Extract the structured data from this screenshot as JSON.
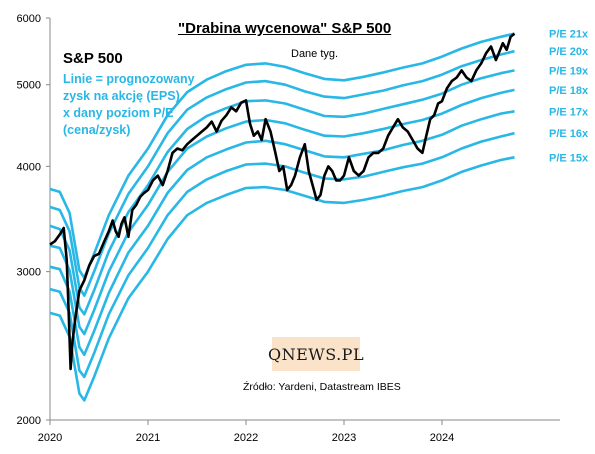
{
  "header": {
    "title": "\"Drabina  wycenowa\"  S&P 500",
    "subtitle": "Dane tyg."
  },
  "annotation": {
    "index_name": "S&P 500",
    "explanation_lines": [
      "Linie = prognozowany",
      "zysk na akcję (EPS)",
      "x dany poziom P/E",
      "(cena/zysk)"
    ]
  },
  "logo": {
    "text": "QNEWS.PL"
  },
  "source": "Źródło: Yardeni, Datastream IBES",
  "colors": {
    "sp500": "#000000",
    "pe_lines": "#29b7e6",
    "pe_labels": "#29b7e6",
    "logo_bg": "#fbe3c9"
  },
  "chart_data": {
    "type": "line",
    "title": "\"Drabina  wycenowa\"  S&P 500",
    "y_scale": "log",
    "ylim": [
      2000,
      6000
    ],
    "xlim": [
      2020.0,
      2025.0
    ],
    "y_ticks": [
      2000,
      3000,
      4000,
      5000,
      6000
    ],
    "x_ticks": [
      2020,
      2021,
      2022,
      2023,
      2024
    ],
    "grid": false,
    "series": [
      {
        "name": "S&P 500",
        "x": [
          2020.0,
          2020.05,
          2020.1,
          2020.14,
          2020.17,
          2020.19,
          2020.21,
          2020.23,
          2020.26,
          2020.3,
          2020.35,
          2020.4,
          2020.45,
          2020.5,
          2020.55,
          2020.6,
          2020.64,
          2020.67,
          2020.7,
          2020.73,
          2020.76,
          2020.8,
          2020.84,
          2020.88,
          2020.92,
          2020.96,
          2021.0,
          2021.05,
          2021.1,
          2021.15,
          2021.2,
          2021.25,
          2021.3,
          2021.35,
          2021.4,
          2021.45,
          2021.5,
          2021.55,
          2021.6,
          2021.65,
          2021.7,
          2021.75,
          2021.8,
          2021.85,
          2021.9,
          2021.95,
          2022.0,
          2022.04,
          2022.08,
          2022.12,
          2022.16,
          2022.2,
          2022.25,
          2022.3,
          2022.34,
          2022.38,
          2022.42,
          2022.46,
          2022.5,
          2022.55,
          2022.6,
          2022.64,
          2022.68,
          2022.72,
          2022.76,
          2022.8,
          2022.84,
          2022.88,
          2022.92,
          2022.96,
          2023.0,
          2023.05,
          2023.1,
          2023.15,
          2023.2,
          2023.25,
          2023.3,
          2023.35,
          2023.4,
          2023.45,
          2023.5,
          2023.55,
          2023.6,
          2023.65,
          2023.7,
          2023.75,
          2023.8,
          2023.84,
          2023.88,
          2023.92,
          2023.96,
          2024.0,
          2024.05,
          2024.1,
          2024.15,
          2024.2,
          2024.25,
          2024.3,
          2024.35,
          2024.4,
          2024.45,
          2024.5,
          2024.55,
          2024.58,
          2024.62,
          2024.66,
          2024.7,
          2024.74
        ],
        "values": [
          3230,
          3260,
          3320,
          3380,
          3100,
          2700,
          2300,
          2480,
          2650,
          2850,
          2930,
          3050,
          3130,
          3150,
          3250,
          3350,
          3450,
          3350,
          3300,
          3420,
          3480,
          3300,
          3550,
          3600,
          3680,
          3720,
          3750,
          3850,
          3900,
          3800,
          3950,
          4150,
          4200,
          4180,
          4250,
          4300,
          4350,
          4400,
          4450,
          4520,
          4400,
          4530,
          4600,
          4700,
          4650,
          4760,
          4790,
          4500,
          4350,
          4400,
          4300,
          4550,
          4400,
          4150,
          3950,
          4000,
          3750,
          3800,
          3900,
          4100,
          4250,
          3950,
          3800,
          3650,
          3700,
          3900,
          4000,
          3950,
          3850,
          3850,
          3900,
          4100,
          3950,
          3900,
          3950,
          4100,
          4150,
          4150,
          4200,
          4350,
          4450,
          4550,
          4450,
          4400,
          4300,
          4200,
          4150,
          4350,
          4550,
          4600,
          4750,
          4780,
          4950,
          5050,
          5100,
          5200,
          5100,
          5050,
          5200,
          5300,
          5450,
          5550,
          5350,
          5450,
          5600,
          5500,
          5700,
          5750
        ]
      },
      {
        "name": "P/E 21x",
        "x": [
          2020.0,
          2020.1,
          2020.2,
          2020.3,
          2020.35,
          2020.45,
          2020.6,
          2020.8,
          2021.0,
          2021.2,
          2021.4,
          2021.6,
          2021.8,
          2022.0,
          2022.2,
          2022.4,
          2022.6,
          2022.8,
          2023.0,
          2023.2,
          2023.4,
          2023.6,
          2023.8,
          2024.0,
          2024.2,
          2024.4,
          2024.6,
          2024.74
        ],
        "values": [
          3760,
          3730,
          3520,
          3010,
          2950,
          3150,
          3500,
          3900,
          4200,
          4600,
          4900,
          5070,
          5190,
          5280,
          5300,
          5250,
          5160,
          5080,
          5060,
          5110,
          5170,
          5240,
          5300,
          5400,
          5520,
          5620,
          5700,
          5750
        ]
      },
      {
        "name": "P/E 20x",
        "x": [
          2020.0,
          2020.1,
          2020.2,
          2020.3,
          2020.35,
          2020.45,
          2020.6,
          2020.8,
          2021.0,
          2021.2,
          2021.4,
          2021.6,
          2021.8,
          2022.0,
          2022.2,
          2022.4,
          2022.6,
          2022.8,
          2023.0,
          2023.2,
          2023.4,
          2023.6,
          2023.8,
          2024.0,
          2024.2,
          2024.4,
          2024.6,
          2024.74
        ],
        "values": [
          3580,
          3550,
          3350,
          2870,
          2810,
          3000,
          3330,
          3710,
          4000,
          4380,
          4670,
          4830,
          4940,
          5030,
          5050,
          5000,
          4910,
          4840,
          4820,
          4870,
          4920,
          4990,
          5050,
          5140,
          5260,
          5350,
          5430,
          5480
        ]
      },
      {
        "name": "P/E 19x",
        "x": [
          2020.0,
          2020.1,
          2020.2,
          2020.3,
          2020.35,
          2020.45,
          2020.6,
          2020.8,
          2021.0,
          2021.2,
          2021.4,
          2021.6,
          2021.8,
          2022.0,
          2022.2,
          2022.4,
          2022.6,
          2022.8,
          2023.0,
          2023.2,
          2023.4,
          2023.6,
          2023.8,
          2024.0,
          2024.2,
          2024.4,
          2024.6,
          2024.74
        ],
        "values": [
          3400,
          3370,
          3180,
          2720,
          2670,
          2850,
          3170,
          3530,
          3800,
          4160,
          4430,
          4590,
          4690,
          4780,
          4790,
          4750,
          4670,
          4590,
          4580,
          4620,
          4680,
          4740,
          4800,
          4880,
          5000,
          5090,
          5160,
          5200
        ]
      },
      {
        "name": "P/E 18x",
        "x": [
          2020.0,
          2020.1,
          2020.2,
          2020.3,
          2020.35,
          2020.45,
          2020.6,
          2020.8,
          2021.0,
          2021.2,
          2021.4,
          2021.6,
          2021.8,
          2022.0,
          2022.2,
          2022.4,
          2022.6,
          2022.8,
          2023.0,
          2023.2,
          2023.4,
          2023.6,
          2023.8,
          2024.0,
          2024.2,
          2024.4,
          2024.6,
          2024.74
        ],
        "values": [
          3220,
          3200,
          3010,
          2580,
          2530,
          2700,
          3000,
          3340,
          3600,
          3940,
          4200,
          4340,
          4440,
          4520,
          4540,
          4500,
          4420,
          4350,
          4340,
          4380,
          4430,
          4490,
          4540,
          4620,
          4730,
          4820,
          4890,
          4930
        ]
      },
      {
        "name": "P/E 17x",
        "x": [
          2020.0,
          2020.1,
          2020.2,
          2020.3,
          2020.35,
          2020.45,
          2020.6,
          2020.8,
          2021.0,
          2021.2,
          2021.4,
          2021.6,
          2021.8,
          2022.0,
          2022.2,
          2022.4,
          2022.6,
          2022.8,
          2023.0,
          2023.2,
          2023.4,
          2023.6,
          2023.8,
          2024.0,
          2024.2,
          2024.4,
          2024.6,
          2024.74
        ],
        "values": [
          3040,
          3020,
          2840,
          2440,
          2390,
          2550,
          2830,
          3160,
          3400,
          3720,
          3960,
          4100,
          4190,
          4270,
          4290,
          4250,
          4180,
          4110,
          4100,
          4140,
          4180,
          4240,
          4290,
          4360,
          4470,
          4550,
          4620,
          4650
        ]
      },
      {
        "name": "P/E 16x",
        "x": [
          2020.0,
          2020.1,
          2020.2,
          2020.3,
          2020.35,
          2020.45,
          2020.6,
          2020.8,
          2021.0,
          2021.2,
          2021.4,
          2021.6,
          2021.8,
          2022.0,
          2022.2,
          2022.4,
          2022.6,
          2022.8,
          2023.0,
          2023.2,
          2023.4,
          2023.6,
          2023.8,
          2024.0,
          2024.2,
          2024.4,
          2024.6,
          2024.74
        ],
        "values": [
          2860,
          2840,
          2680,
          2290,
          2250,
          2400,
          2670,
          2970,
          3200,
          3500,
          3730,
          3860,
          3950,
          4020,
          4030,
          4000,
          3930,
          3870,
          3860,
          3890,
          3940,
          3990,
          4030,
          4100,
          4200,
          4280,
          4340,
          4380
        ]
      },
      {
        "name": "P/E 15x",
        "x": [
          2020.0,
          2020.1,
          2020.2,
          2020.3,
          2020.35,
          2020.45,
          2020.6,
          2020.8,
          2021.0,
          2021.2,
          2021.4,
          2021.6,
          2021.8,
          2022.0,
          2022.2,
          2022.4,
          2022.6,
          2022.8,
          2023.0,
          2023.2,
          2023.4,
          2023.6,
          2023.8,
          2024.0,
          2024.2,
          2024.4,
          2024.6,
          2024.74
        ],
        "values": [
          2680,
          2660,
          2510,
          2150,
          2110,
          2250,
          2500,
          2790,
          3000,
          3280,
          3500,
          3620,
          3700,
          3770,
          3780,
          3750,
          3690,
          3630,
          3620,
          3650,
          3690,
          3740,
          3780,
          3850,
          3940,
          4010,
          4070,
          4100
        ]
      }
    ]
  }
}
